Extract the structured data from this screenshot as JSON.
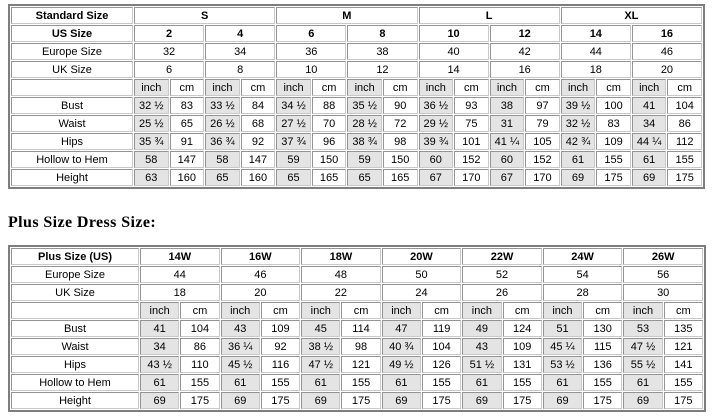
{
  "colors": {
    "cell_shade": "#e4e4e4",
    "cell_border": "#a3a3a3",
    "table_border": "#7e7e7e"
  },
  "standard_table": {
    "header_label": "Standard Size",
    "groups": [
      "S",
      "M",
      "L",
      "XL"
    ],
    "size_rows": [
      {
        "label": "US Size",
        "bold": true,
        "values": [
          "2",
          "4",
          "6",
          "8",
          "10",
          "12",
          "14",
          "16"
        ]
      },
      {
        "label": "Europe Size",
        "bold": false,
        "values": [
          "32",
          "34",
          "36",
          "38",
          "40",
          "42",
          "44",
          "46"
        ]
      },
      {
        "label": "UK Size",
        "bold": false,
        "values": [
          "6",
          "8",
          "10",
          "12",
          "14",
          "16",
          "18",
          "20"
        ]
      }
    ],
    "unit_labels": {
      "inch": "inch",
      "cm": "cm"
    },
    "measure_rows": [
      {
        "label": "Bust",
        "inch": [
          "32 ½",
          "33 ½",
          "34 ½",
          "35 ½",
          "36 ½",
          "38",
          "39 ½",
          "41"
        ],
        "cm": [
          "83",
          "84",
          "88",
          "90",
          "93",
          "97",
          "100",
          "104"
        ]
      },
      {
        "label": "Waist",
        "inch": [
          "25 ½",
          "26 ½",
          "27 ½",
          "28 ½",
          "29 ½",
          "31",
          "32 ½",
          "34"
        ],
        "cm": [
          "65",
          "68",
          "70",
          "72",
          "75",
          "79",
          "83",
          "86"
        ]
      },
      {
        "label": "Hips",
        "inch": [
          "35 ¾",
          "36 ¾",
          "37 ¾",
          "38 ¾",
          "39 ¾",
          "41 ¼",
          "42 ¾",
          "44 ¼"
        ],
        "cm": [
          "91",
          "92",
          "96",
          "98",
          "101",
          "105",
          "109",
          "112"
        ]
      },
      {
        "label": "Hollow to Hem",
        "inch": [
          "58",
          "58",
          "59",
          "59",
          "60",
          "60",
          "61",
          "61"
        ],
        "cm": [
          "147",
          "147",
          "150",
          "150",
          "152",
          "152",
          "155",
          "155"
        ]
      },
      {
        "label": "Height",
        "inch": [
          "63",
          "65",
          "65",
          "65",
          "67",
          "67",
          "69",
          "69"
        ],
        "cm": [
          "160",
          "160",
          "165",
          "165",
          "170",
          "170",
          "175",
          "175"
        ]
      }
    ]
  },
  "plus_heading": "Plus Size Dress Size:",
  "plus_table": {
    "header_label": "Plus Size (US)",
    "groups": [
      "14W",
      "16W",
      "18W",
      "20W",
      "22W",
      "24W",
      "26W"
    ],
    "size_rows": [
      {
        "label": "Europe Size",
        "bold": false,
        "values": [
          "44",
          "46",
          "48",
          "50",
          "52",
          "54",
          "56"
        ]
      },
      {
        "label": "UK Size",
        "bold": false,
        "values": [
          "18",
          "20",
          "22",
          "24",
          "26",
          "28",
          "30"
        ]
      }
    ],
    "unit_labels": {
      "inch": "inch",
      "cm": "cm"
    },
    "measure_rows": [
      {
        "label": "Bust",
        "inch": [
          "41",
          "43",
          "45",
          "47",
          "49",
          "51",
          "53"
        ],
        "cm": [
          "104",
          "109",
          "114",
          "119",
          "124",
          "130",
          "135"
        ]
      },
      {
        "label": "Waist",
        "inch": [
          "34",
          "36 ¼",
          "38 ½",
          "40 ¾",
          "43",
          "45 ¼",
          "47 ½"
        ],
        "cm": [
          "86",
          "92",
          "98",
          "104",
          "109",
          "115",
          "121"
        ]
      },
      {
        "label": "Hips",
        "inch": [
          "43 ½",
          "45 ½",
          "47 ½",
          "49 ½",
          "51 ½",
          "53 ½",
          "55 ½"
        ],
        "cm": [
          "110",
          "116",
          "121",
          "126",
          "131",
          "136",
          "141"
        ]
      },
      {
        "label": "Hollow to Hem",
        "inch": [
          "61",
          "61",
          "61",
          "61",
          "61",
          "61",
          "61"
        ],
        "cm": [
          "155",
          "155",
          "155",
          "155",
          "155",
          "155",
          "155"
        ]
      },
      {
        "label": "Height",
        "inch": [
          "69",
          "69",
          "69",
          "69",
          "69",
          "69",
          "69"
        ],
        "cm": [
          "175",
          "175",
          "175",
          "175",
          "175",
          "175",
          "175"
        ]
      }
    ]
  }
}
